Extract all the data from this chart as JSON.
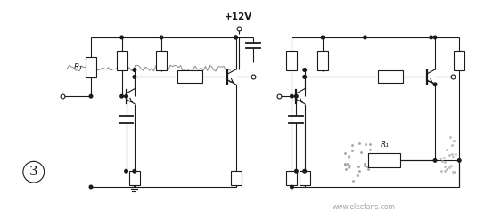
{
  "bg_color": "#ffffff",
  "line_color": "#1a1a1a",
  "title_text": "+12V",
  "label_3": "3",
  "label_R1_left": "R₁",
  "label_R1_right": "R₁",
  "fig_width": 5.53,
  "fig_height": 2.46,
  "dpi": 100,
  "watermark": "www.elecfans.com"
}
